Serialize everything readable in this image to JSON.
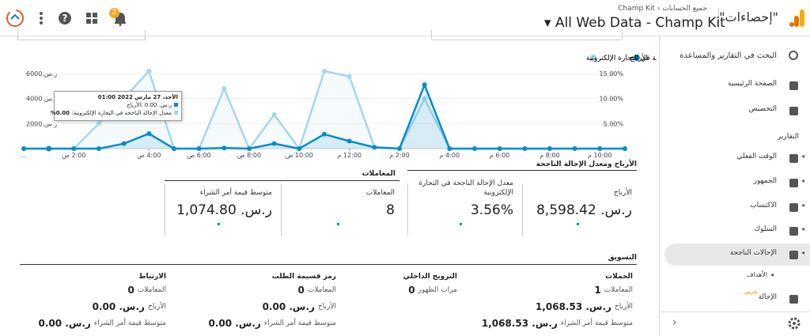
{
  "header": {
    "product": "\"إحصاءات\"",
    "breadcrumb_parent": "جميع الحسابات",
    "breadcrumb_account": "Champ Kit",
    "view": "All Web Data - Champ Kit",
    "notifications": "2"
  },
  "sidebar": {
    "search": "البحث في التقارير والمساعدة",
    "top_items": [
      "الصفحة الرئيسية",
      "التخصيص"
    ],
    "section": "التقارير",
    "report_items": [
      "الوقت الفعلي",
      "الجمهور",
      "الاكتساب",
      "السلوك",
      "الإحالات الناجحة"
    ],
    "sub_item": "الأهداف",
    "beta_item": "الإحالة",
    "beta_badge": "تجريبي"
  },
  "chart": {
    "type": "line",
    "categories": [
      "...",
      null,
      "2:00 ص",
      null,
      null,
      "4:00 ص",
      null,
      "6:00 ص",
      null,
      "8:00 ص",
      null,
      "10:00 ص",
      null,
      "12:00 م",
      null,
      "2:00 م",
      null,
      "4:00 م",
      null,
      "6:00 م",
      null,
      "8:00 م",
      null,
      "10:00 م",
      null
    ],
    "series": [
      {
        "name": "الأرباح",
        "color": "#058dc7",
        "values": [
          0,
          0,
          0,
          0,
          400,
          1200,
          0,
          0,
          50,
          0,
          400,
          0,
          1150,
          600,
          100,
          0,
          5100,
          0,
          0,
          0,
          0,
          0,
          0,
          0,
          0
        ]
      },
      {
        "name": "معدل الإحالة الناجحة في التجارة الإلكترونية",
        "color": "#a5d6f0",
        "axis": "y2",
        "values": [
          0,
          0,
          0,
          5,
          10,
          15.5,
          0,
          0,
          12,
          0,
          6.8,
          0,
          15.5,
          14.4,
          0.3,
          0,
          10,
          0,
          0,
          0,
          0,
          0,
          0,
          0,
          0
        ]
      }
    ],
    "ylim": [
      0,
      6000
    ],
    "yticks": [
      {
        "value": 2000,
        "label": "ر.س.2000"
      },
      {
        "value": 4000,
        "label": "ر.س.4000"
      },
      {
        "value": 6000,
        "label": "ر.س.6000"
      }
    ],
    "y2lim": [
      0,
      15
    ],
    "y2ticks": [
      {
        "value": 5,
        "label": "5.00%"
      },
      {
        "value": 10,
        "label": "10.00%"
      },
      {
        "value": 15,
        "label": "15.00%"
      }
    ],
    "grid": true
  },
  "tooltip": {
    "date": "الأحد، 27 مارس 2022 01:00",
    "line1": "ر.س. 0.00 :الأرباح",
    "line2_label": "معدل الإحالة الناجحة في التجارة الإلكترونية:",
    "line2_value": "0.00%"
  },
  "scorecards": {
    "title": "الأرباح ومعدل الإحالة الناجحة",
    "group_title": "المعاملات",
    "cards": [
      {
        "label": "الأرباح",
        "value": "ر.س. 8,598.42"
      },
      {
        "label": "معدل الإحالة الناجحة في التجارة الإلكترونية",
        "value": "3.56%"
      },
      {
        "label": "المعاملات",
        "value": "8"
      },
      {
        "label": "متوسط قيمة أمر الشراء",
        "value": "ر.س. 1,074.80"
      }
    ]
  },
  "marketing": {
    "title": "التسويق",
    "columns": [
      {
        "title": "الحملات",
        "rows": [
          {
            "value": "1",
            "label": "المعاملات"
          },
          {
            "value": "ر.س. 1,068.53",
            "label": "الأرباح"
          },
          {
            "value": "ر.س. 1,068.53",
            "label": "متوسط قيمة أمر الشراء"
          }
        ]
      },
      {
        "title": "الترويج الداخلي",
        "rows": [
          {
            "value": "0",
            "label": "مرات الظهور"
          }
        ]
      },
      {
        "title": "رمز قسيمة الطلب",
        "rows": [
          {
            "value": "0",
            "label": "المعاملات"
          },
          {
            "value": "ر.س. 0.00",
            "label": "الأرباح"
          },
          {
            "value": "ر.س. 0.00",
            "label": "متوسط قيمة أمر الشراء"
          }
        ]
      },
      {
        "title": "الارتباط",
        "rows": [
          {
            "value": "0",
            "label": "المعاملات"
          },
          {
            "value": "ر.س. 0.00",
            "label": "الأرباح"
          },
          {
            "value": "ر.س. 0.00",
            "label": "متوسط قيمة أمر الشراء"
          }
        ]
      }
    ]
  }
}
